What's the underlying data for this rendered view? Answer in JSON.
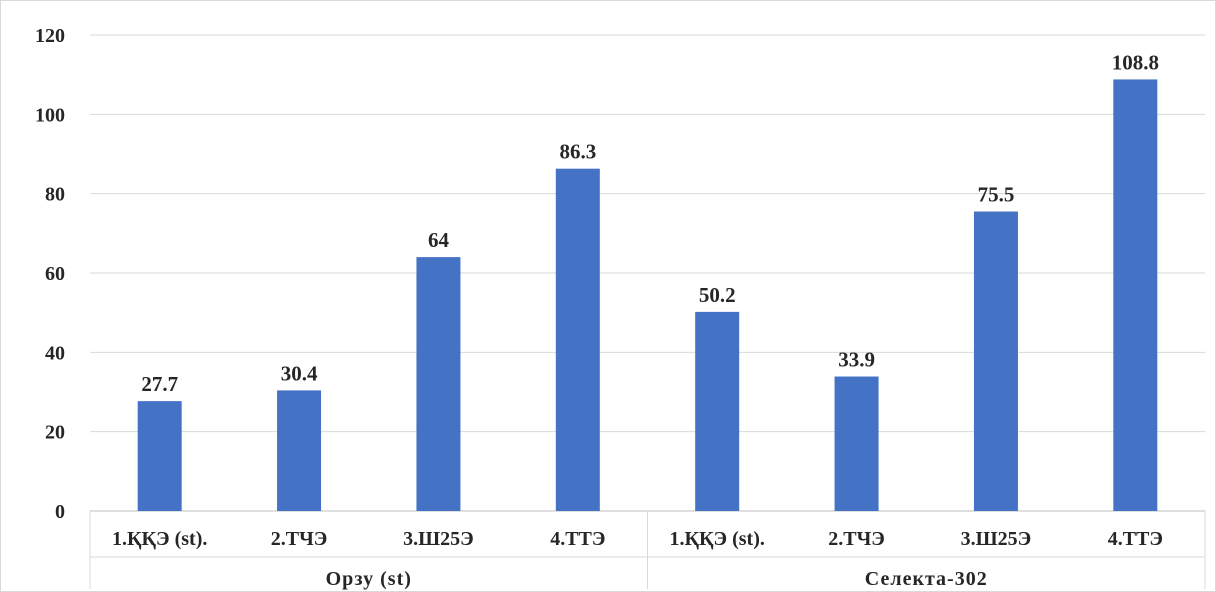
{
  "chart_data": {
    "type": "bar",
    "title": "",
    "xlabel": "",
    "ylabel": "",
    "ylim": [
      0,
      120
    ],
    "yticks": [
      0,
      20,
      40,
      60,
      80,
      100,
      120
    ],
    "grid": true,
    "bar_color": "#4472C4",
    "groups": [
      {
        "label": "Орзу (st)",
        "categories": [
          "1.ҚҚЭ (st).",
          "2.ТЧЭ",
          "3.Ш25Э",
          "4.ТТЭ"
        ],
        "values": [
          27.7,
          30.4,
          64,
          86.3
        ]
      },
      {
        "label": "Селекта-302",
        "categories": [
          "1.ҚҚЭ (st).",
          "2.ТЧЭ",
          "3.Ш25Э",
          "4.ТТЭ"
        ],
        "values": [
          50.2,
          33.9,
          75.5,
          108.8
        ]
      }
    ]
  }
}
